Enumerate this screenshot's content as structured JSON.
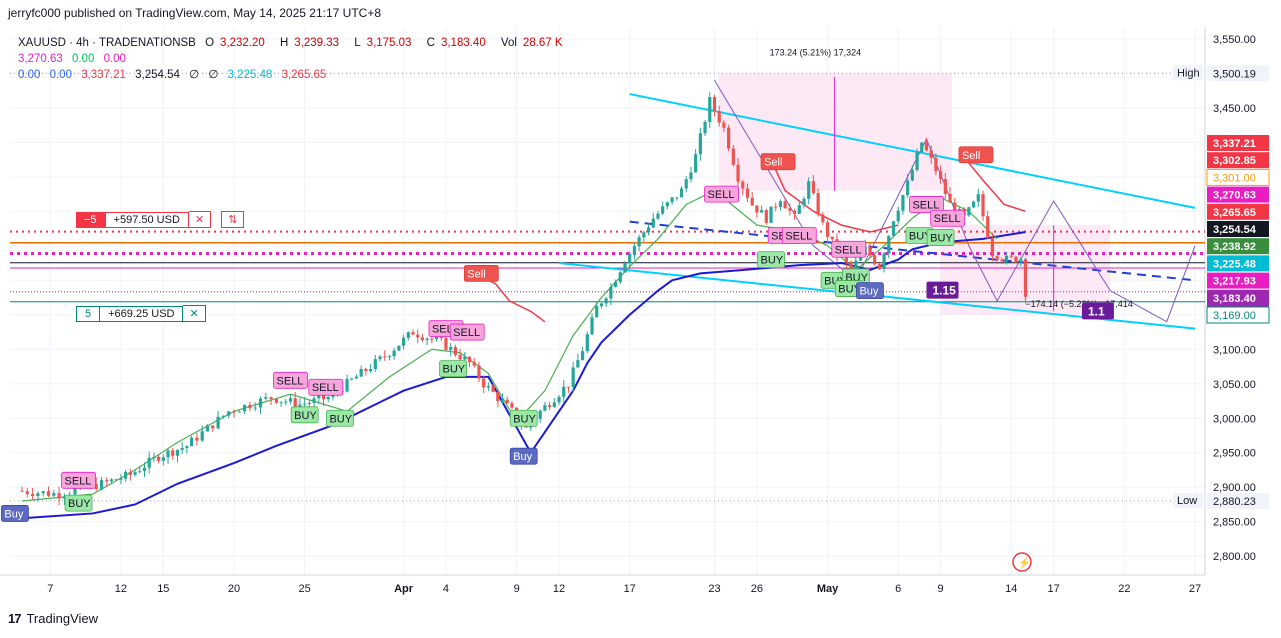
{
  "header": {
    "publisher": "jerryfc000 published on TradingView.com, May 14, 2025 21:17 UTC+8"
  },
  "legend": {
    "symbol": "XAUUSD · 4h · TRADENATIONSB",
    "o_label": "O",
    "o": "3,232.20",
    "h_label": "H",
    "h": "3,239.33",
    "l_label": "L",
    "l": "3,175.03",
    "c_label": "C",
    "c": "3,183.40",
    "vol_label": "Vol",
    "vol": "28.67 K",
    "row2": [
      "3,270.63",
      "0.00",
      "0.00"
    ],
    "row3": [
      "0.00",
      "0.00",
      "3,337.21",
      "3,254.54",
      "∅",
      "∅",
      "3,225.48",
      "3,265.65"
    ]
  },
  "positions": {
    "short": {
      "qty": "−5",
      "pnl": "+597.50 USD",
      "close": "✕",
      "side": "⇅"
    },
    "long": {
      "qty": "5",
      "pnl": "+669.25 USD",
      "close": "✕"
    }
  },
  "footer": {
    "brand": "TradingView"
  },
  "chart_data": {
    "type": "candlestick",
    "symbol": "XAUUSD",
    "interval": "4h",
    "ylim": [
      2780,
      3560
    ],
    "y_ticks": [
      "3,550.00",
      "3,450.00",
      "3,400.00",
      "3,350.00",
      "3,300.00",
      "3,250.00",
      "3,200.00",
      "3,150.00",
      "3,100.00",
      "3,050.00",
      "3,000.00",
      "2,950.00",
      "2,900.00",
      "2,850.00",
      "2,800.00"
    ],
    "x_ticks": [
      {
        "label": "7",
        "d": 7
      },
      {
        "label": "12",
        "d": 12
      },
      {
        "label": "15",
        "d": 15
      },
      {
        "label": "20",
        "d": 20
      },
      {
        "label": "25",
        "d": 25
      },
      {
        "label": "Apr",
        "d": 32
      },
      {
        "label": "4",
        "d": 35
      },
      {
        "label": "9",
        "d": 40
      },
      {
        "label": "12",
        "d": 43
      },
      {
        "label": "17",
        "d": 48
      },
      {
        "label": "23",
        "d": 54
      },
      {
        "label": "26",
        "d": 57
      },
      {
        "label": "May",
        "d": 62
      },
      {
        "label": "6",
        "d": 67
      },
      {
        "label": "9",
        "d": 70
      },
      {
        "label": "14",
        "d": 75
      },
      {
        "label": "17",
        "d": 78
      },
      {
        "label": "22",
        "d": 83
      },
      {
        "label": "27",
        "d": 88
      }
    ],
    "price_path": [
      [
        5,
        2895
      ],
      [
        8,
        2890
      ],
      [
        11,
        2905
      ],
      [
        13,
        2918
      ],
      [
        15,
        2945
      ],
      [
        17,
        2960
      ],
      [
        20,
        3010
      ],
      [
        23,
        3030
      ],
      [
        25,
        3020
      ],
      [
        27,
        3030
      ],
      [
        29,
        3060
      ],
      [
        31,
        3090
      ],
      [
        33,
        3125
      ],
      [
        35,
        3110
      ],
      [
        37,
        3080
      ],
      [
        38,
        3050
      ],
      [
        40,
        3010
      ],
      [
        41,
        2985
      ],
      [
        42,
        3010
      ],
      [
        44,
        3050
      ],
      [
        45,
        3100
      ],
      [
        46,
        3160
      ],
      [
        47,
        3190
      ],
      [
        48,
        3230
      ],
      [
        49,
        3260
      ],
      [
        50,
        3290
      ],
      [
        52,
        3330
      ],
      [
        53,
        3380
      ],
      [
        54,
        3460
      ],
      [
        55,
        3420
      ],
      [
        56,
        3350
      ],
      [
        57,
        3310
      ],
      [
        58,
        3290
      ],
      [
        59,
        3320
      ],
      [
        60,
        3290
      ],
      [
        61,
        3340
      ],
      [
        62,
        3280
      ],
      [
        63,
        3240
      ],
      [
        64,
        3215
      ],
      [
        65,
        3245
      ],
      [
        66,
        3220
      ],
      [
        67,
        3290
      ],
      [
        68,
        3340
      ],
      [
        69,
        3400
      ],
      [
        70,
        3360
      ],
      [
        71,
        3310
      ],
      [
        72,
        3290
      ],
      [
        73,
        3320
      ],
      [
        74,
        3240
      ],
      [
        75,
        3230
      ],
      [
        76,
        3232
      ],
      [
        76.5,
        3183
      ]
    ],
    "horizontal_levels": [
      {
        "label": "High",
        "price": 3500.19,
        "text": "3,500.19"
      },
      {
        "label": "Low",
        "price": 2880.23,
        "text": "2,880.23"
      }
    ],
    "price_scale_labels": [
      {
        "text": "3,337.21",
        "color": "#f23645",
        "price": 3337.21
      },
      {
        "text": "3,302.85",
        "color": "#f23645",
        "price": 3302.85
      },
      {
        "text": "3,301.00",
        "color": "#ff9800",
        "price": 3301.0,
        "outline": true
      },
      {
        "text": "3,270.63",
        "color": "#e91ec2",
        "price": 3270.63
      },
      {
        "text": "3,265.65",
        "color": "#f23645",
        "price": 3265.65
      },
      {
        "text": "3,254.54",
        "color": "#131722",
        "price": 3254.54
      },
      {
        "text": "3,238.92",
        "color": "#388e3c",
        "price": 3238.92
      },
      {
        "text": "3,225.48",
        "color": "#00bcd4",
        "price": 3225.48
      },
      {
        "text": "3,217.93",
        "color": "#e91ec2",
        "price": 3217.93
      },
      {
        "text": "3,183.40",
        "color": "#9c27b0",
        "price": 3183.4,
        "extra": "42:25"
      },
      {
        "text": "3,169.00",
        "color": "#00897b",
        "price": 3169.0,
        "outline": true
      }
    ],
    "measure_up": {
      "text": "173.24 (5.21%) 17,324"
    },
    "measure_down": {
      "text": "−174.14 (−5.23%) −17,414"
    },
    "fib_tags": [
      {
        "text": "1.15",
        "price": 3185,
        "d": 69
      },
      {
        "text": "1.1",
        "price": 3155,
        "d": 80
      }
    ],
    "signals": [
      {
        "t": "Buy",
        "d": 4.5,
        "price": 2862,
        "kind": "buy-strong"
      },
      {
        "t": "BUY",
        "d": 9,
        "price": 2877,
        "kind": "buy"
      },
      {
        "t": "SELL",
        "d": 9,
        "price": 2910,
        "kind": "sell"
      },
      {
        "t": "SELL",
        "d": 24,
        "price": 3055,
        "kind": "sell"
      },
      {
        "t": "SELL",
        "d": 26.5,
        "price": 3045,
        "kind": "sell"
      },
      {
        "t": "BUY",
        "d": 25,
        "price": 3005,
        "kind": "buy"
      },
      {
        "t": "BUY",
        "d": 27.5,
        "price": 3000,
        "kind": "buy"
      },
      {
        "t": "SELL",
        "d": 35,
        "price": 3130,
        "kind": "sell"
      },
      {
        "t": "SELL",
        "d": 36.5,
        "price": 3125,
        "kind": "sell"
      },
      {
        "t": "BUY",
        "d": 35.5,
        "price": 3072,
        "kind": "buy"
      },
      {
        "t": "Sell",
        "d": 37.5,
        "price": 3210,
        "kind": "sell-strong"
      },
      {
        "t": "Buy",
        "d": 40.5,
        "price": 2945,
        "kind": "buy-strong"
      },
      {
        "t": "BUY",
        "d": 40.5,
        "price": 3000,
        "kind": "buy"
      },
      {
        "t": "SELL",
        "d": 54.5,
        "price": 3325,
        "kind": "sell"
      },
      {
        "t": "Sell",
        "d": 58.5,
        "price": 3372,
        "kind": "sell-strong"
      },
      {
        "t": "BUY",
        "d": 58,
        "price": 3230,
        "kind": "buy"
      },
      {
        "t": "SELL",
        "d": 59,
        "price": 3265,
        "kind": "sell"
      },
      {
        "t": "SELL",
        "d": 60,
        "price": 3265,
        "kind": "sell"
      },
      {
        "t": "SELL",
        "d": 63.5,
        "price": 3245,
        "kind": "sell"
      },
      {
        "t": "BUY",
        "d": 62.5,
        "price": 3200,
        "kind": "buy"
      },
      {
        "t": "BUY",
        "d": 64,
        "price": 3205,
        "kind": "buy"
      },
      {
        "t": "BUY",
        "d": 63.5,
        "price": 3188,
        "kind": "buy"
      },
      {
        "t": "Buy",
        "d": 65,
        "price": 3185,
        "kind": "buy-strong"
      },
      {
        "t": "SELL",
        "d": 69,
        "price": 3310,
        "kind": "sell"
      },
      {
        "t": "SELL",
        "d": 70.5,
        "price": 3290,
        "kind": "sell"
      },
      {
        "t": "BUY",
        "d": 68.5,
        "price": 3265,
        "kind": "buy"
      },
      {
        "t": "BUY",
        "d": 70,
        "price": 3262,
        "kind": "buy"
      },
      {
        "t": "Sell",
        "d": 72.5,
        "price": 3382,
        "kind": "sell-strong"
      }
    ]
  },
  "colors": {
    "up": "#26a69a",
    "down": "#ef5350",
    "grid": "#f0f3fa",
    "axis_text": "#131722",
    "channel": "#00d0ff",
    "trend": "#2962ff",
    "zone": "#fce4f3",
    "purple": "#7e57c2",
    "red_line": "#f23645",
    "magenta": "#e91ec2"
  }
}
